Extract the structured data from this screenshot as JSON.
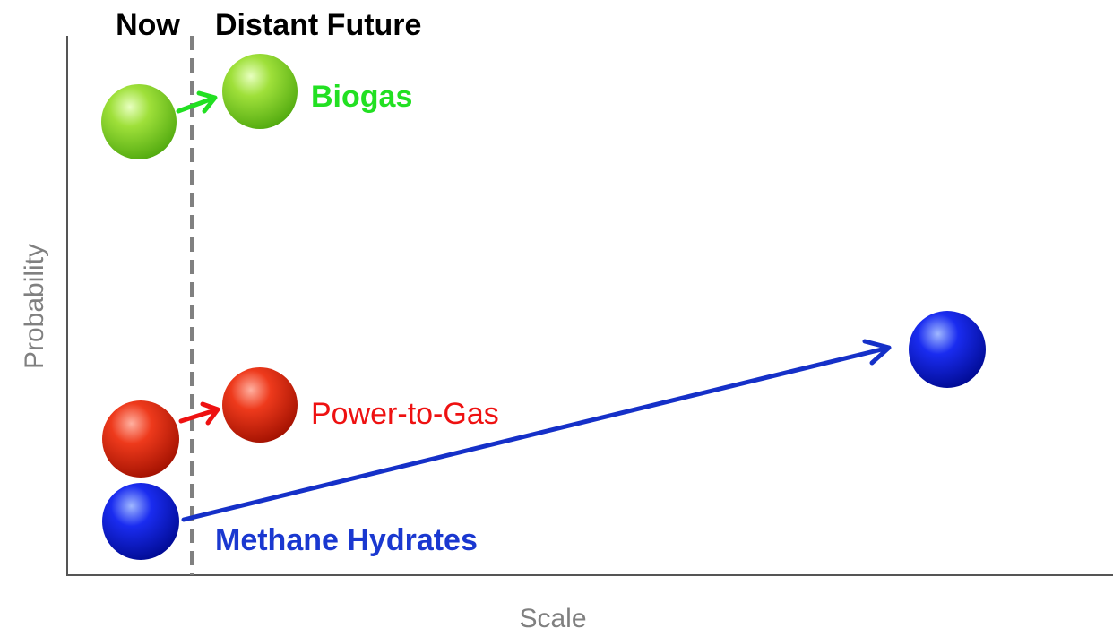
{
  "columns": {
    "now": "Now",
    "future": "Distant Future"
  },
  "axes": {
    "y_label": "Probability",
    "x_label": "Scale"
  },
  "items": [
    {
      "label": "Biogas"
    },
    {
      "label": "Power-to-Gas"
    },
    {
      "label": "Methane Hydrates"
    }
  ]
}
